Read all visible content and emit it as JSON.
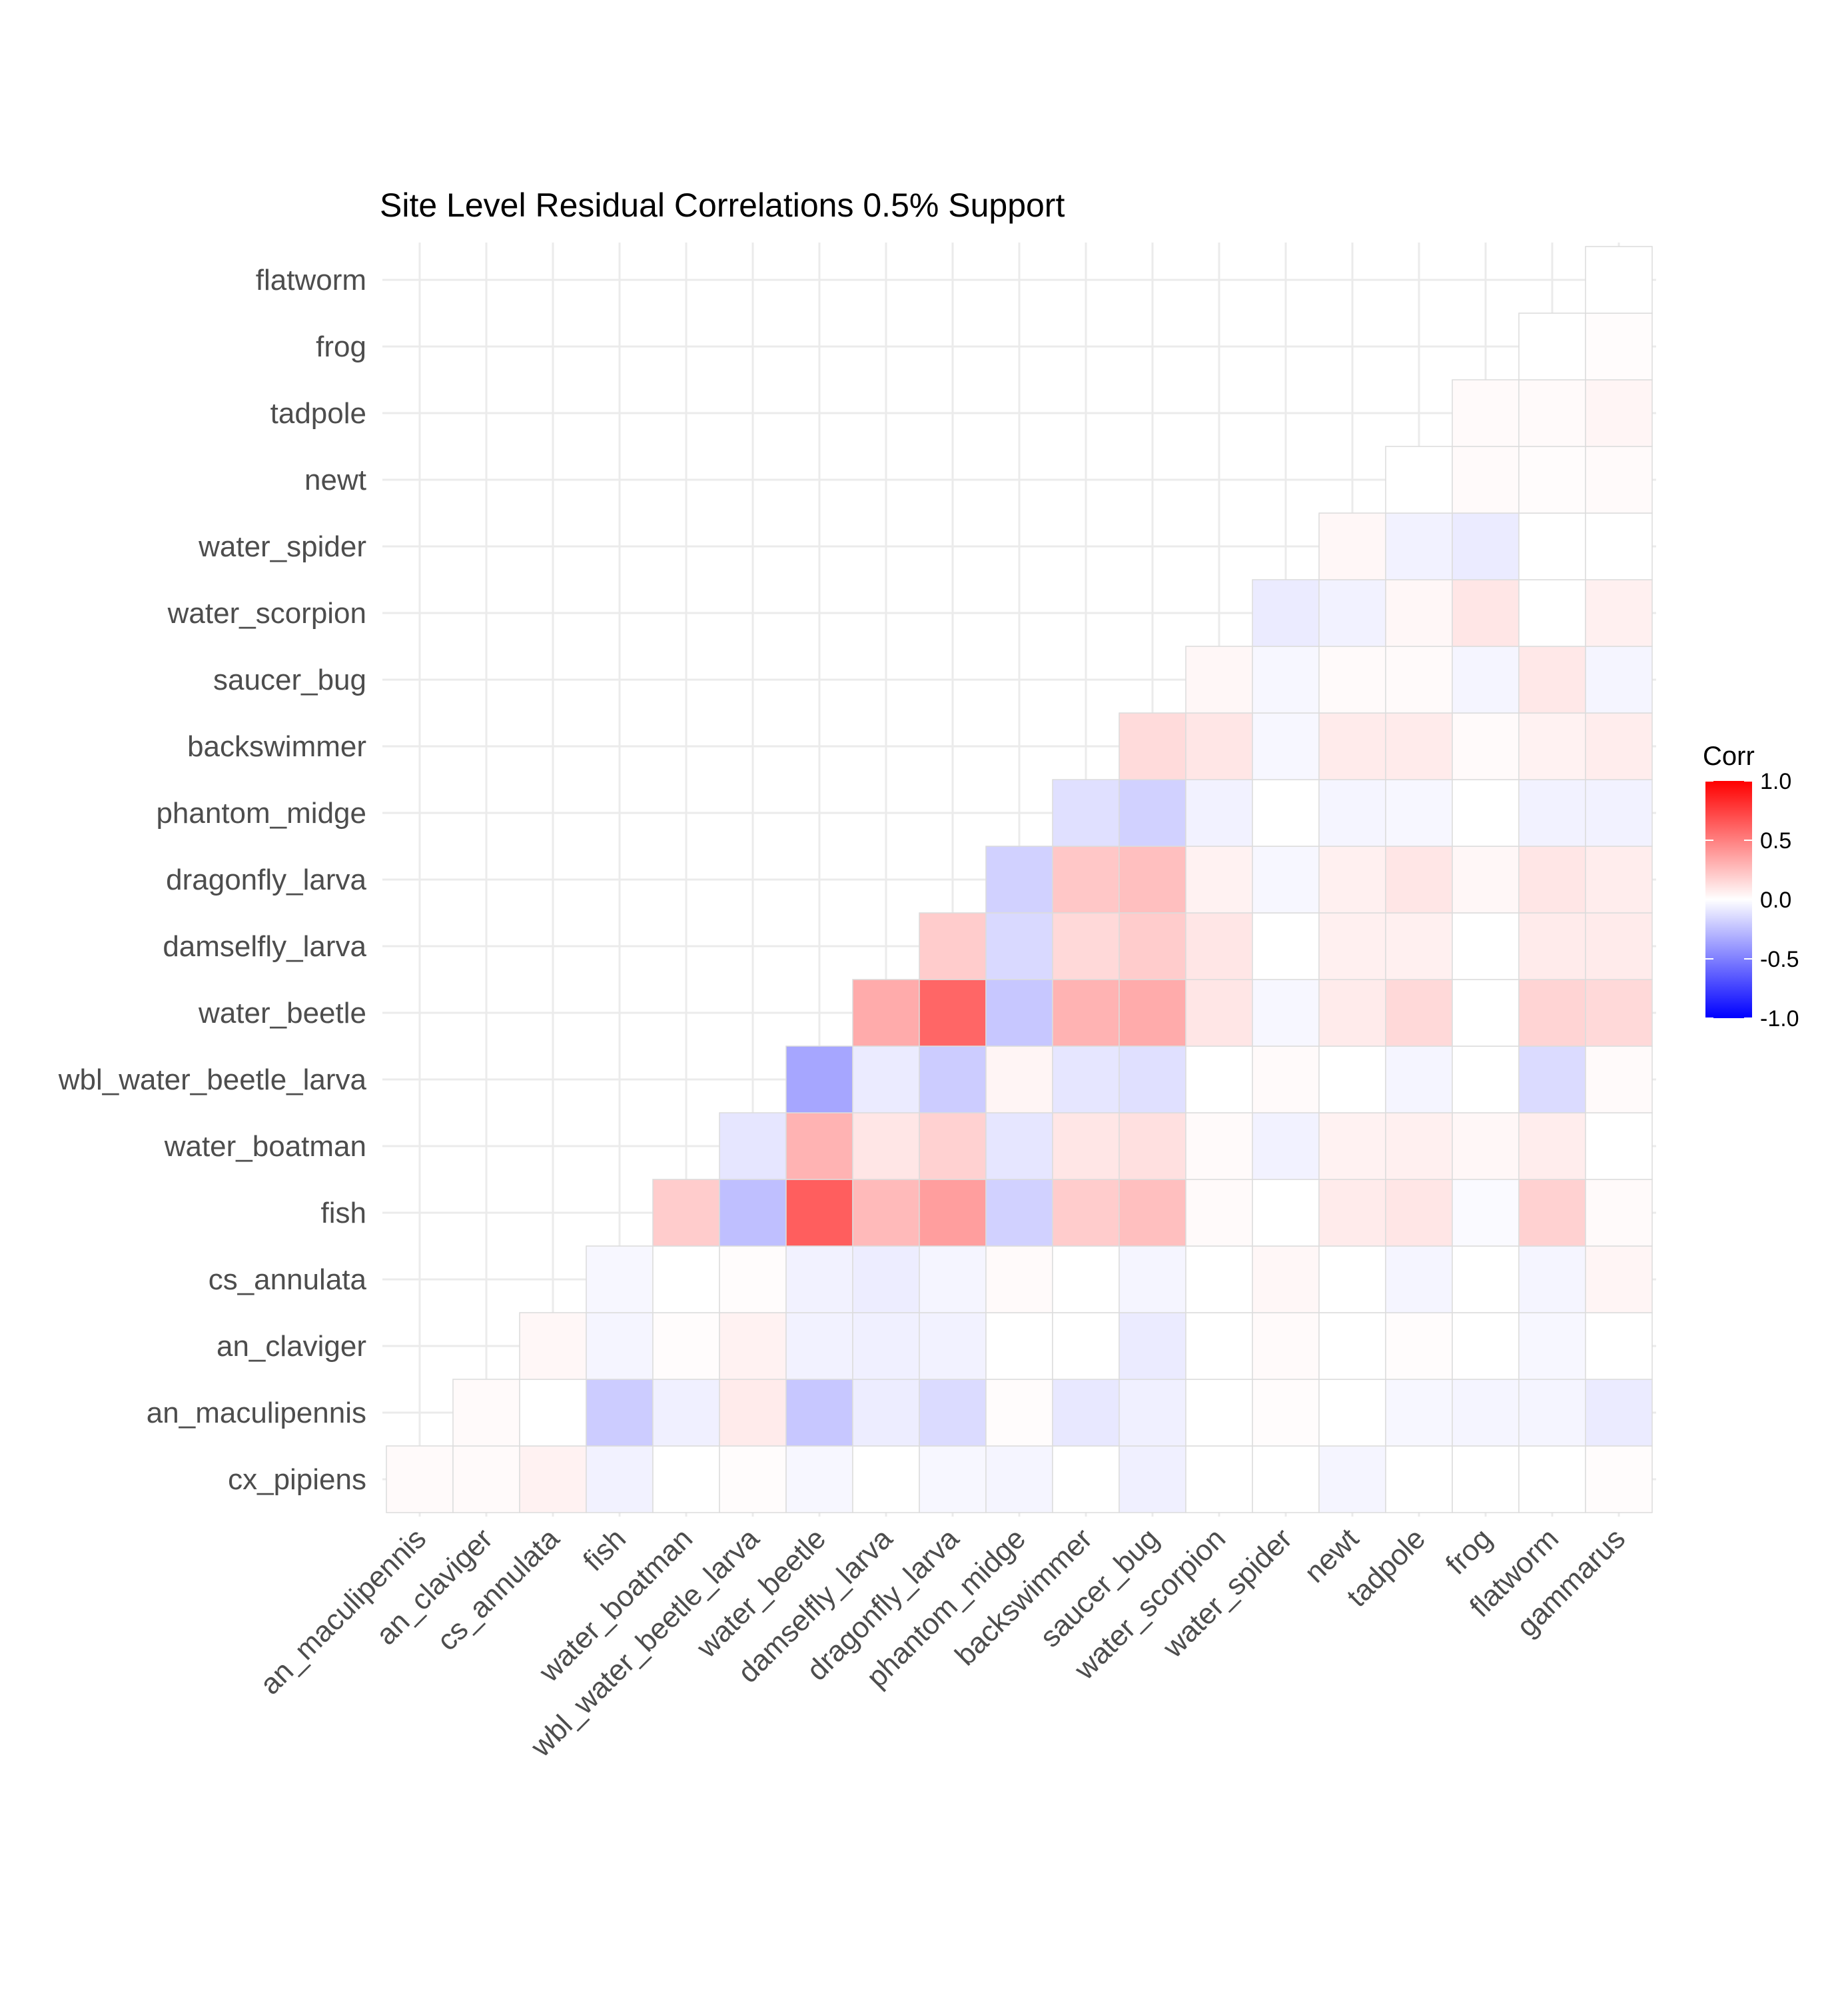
{
  "chart_data": {
    "type": "heatmap",
    "title": "Site Level Residual Correlations 0.5% Support",
    "xlabel": "",
    "ylabel": "",
    "x_categories": [
      "an_maculipennis",
      "an_claviger",
      "cs_annulata",
      "fish",
      "water_boatman",
      "wbl_water_beetle_larva",
      "water_beetle",
      "damselfly_larva",
      "dragonfly_larva",
      "phantom_midge",
      "backswimmer",
      "saucer_bug",
      "water_scorpion",
      "water_spider",
      "newt",
      "tadpole",
      "frog",
      "flatworm",
      "gammarus"
    ],
    "y_categories": [
      "cx_pipiens",
      "an_maculipennis",
      "an_claviger",
      "cs_annulata",
      "fish",
      "water_boatman",
      "wbl_water_beetle_larva",
      "water_beetle",
      "damselfly_larva",
      "dragonfly_larva",
      "phantom_midge",
      "backswimmer",
      "saucer_bug",
      "water_scorpion",
      "water_spider",
      "newt",
      "tadpole",
      "frog",
      "flatworm"
    ],
    "values": [
      [
        0.02,
        0.02,
        0.05,
        -0.05,
        0.0,
        0.01,
        -0.03,
        0.0,
        -0.03,
        -0.04,
        0.0,
        -0.06,
        0.0,
        0.0,
        -0.04,
        0.0,
        0.0,
        0.0,
        0.01
      ],
      [
        null,
        0.02,
        0.0,
        -0.2,
        -0.06,
        0.08,
        -0.22,
        -0.07,
        -0.14,
        0.01,
        -0.09,
        -0.06,
        0.0,
        0.01,
        0.0,
        -0.03,
        -0.04,
        -0.04,
        -0.08
      ],
      [
        null,
        null,
        0.03,
        -0.04,
        0.01,
        0.05,
        -0.05,
        -0.06,
        -0.05,
        0.0,
        0.0,
        -0.08,
        0.0,
        0.02,
        0.0,
        0.01,
        0.0,
        -0.03,
        0.0
      ],
      [
        null,
        null,
        null,
        -0.03,
        0.0,
        0.01,
        -0.05,
        -0.07,
        -0.04,
        0.02,
        0.0,
        -0.04,
        0.0,
        0.03,
        0.0,
        -0.04,
        0.0,
        -0.04,
        0.04
      ],
      [
        null,
        null,
        null,
        null,
        0.2,
        -0.25,
        0.63,
        0.27,
        0.38,
        -0.18,
        0.2,
        0.25,
        0.02,
        0.0,
        0.08,
        0.1,
        -0.02,
        0.18,
        0.02
      ],
      [
        null,
        null,
        null,
        null,
        null,
        -0.1,
        0.3,
        0.1,
        0.18,
        -0.1,
        0.1,
        0.12,
        0.02,
        -0.05,
        0.05,
        0.06,
        0.03,
        0.07,
        0.0
      ],
      [
        null,
        null,
        null,
        null,
        null,
        null,
        -0.35,
        -0.08,
        -0.2,
        0.04,
        -0.1,
        -0.12,
        0.0,
        0.02,
        0.0,
        -0.04,
        0.0,
        -0.14,
        0.02
      ],
      [
        null,
        null,
        null,
        null,
        null,
        null,
        null,
        0.33,
        0.6,
        -0.22,
        0.3,
        0.33,
        0.1,
        -0.03,
        0.08,
        0.15,
        0.0,
        0.17,
        0.15
      ],
      [
        null,
        null,
        null,
        null,
        null,
        null,
        null,
        null,
        0.2,
        -0.15,
        0.15,
        0.2,
        0.1,
        0.0,
        0.06,
        0.06,
        0.0,
        0.08,
        0.08
      ],
      [
        null,
        null,
        null,
        null,
        null,
        null,
        null,
        null,
        null,
        -0.18,
        0.22,
        0.25,
        0.05,
        -0.03,
        0.06,
        0.1,
        0.03,
        0.1,
        0.07
      ],
      [
        null,
        null,
        null,
        null,
        null,
        null,
        null,
        null,
        null,
        null,
        -0.12,
        -0.18,
        -0.05,
        0.0,
        -0.04,
        -0.03,
        0.0,
        -0.05,
        -0.05
      ],
      [
        null,
        null,
        null,
        null,
        null,
        null,
        null,
        null,
        null,
        null,
        null,
        0.14,
        0.1,
        -0.03,
        0.08,
        0.08,
        0.02,
        0.05,
        0.07
      ],
      [
        null,
        null,
        null,
        null,
        null,
        null,
        null,
        null,
        null,
        null,
        null,
        null,
        0.03,
        -0.03,
        0.02,
        0.02,
        -0.04,
        0.09,
        -0.04
      ],
      [
        null,
        null,
        null,
        null,
        null,
        null,
        null,
        null,
        null,
        null,
        null,
        null,
        null,
        -0.08,
        -0.05,
        0.03,
        0.1,
        0.0,
        0.06
      ],
      [
        null,
        null,
        null,
        null,
        null,
        null,
        null,
        null,
        null,
        null,
        null,
        null,
        null,
        null,
        0.03,
        -0.05,
        -0.08,
        0.0,
        0.0
      ],
      [
        null,
        null,
        null,
        null,
        null,
        null,
        null,
        null,
        null,
        null,
        null,
        null,
        null,
        null,
        null,
        0.0,
        0.02,
        0.01,
        0.02
      ],
      [
        null,
        null,
        null,
        null,
        null,
        null,
        null,
        null,
        null,
        null,
        null,
        null,
        null,
        null,
        null,
        null,
        0.02,
        0.02,
        0.04
      ],
      [
        null,
        null,
        null,
        null,
        null,
        null,
        null,
        null,
        null,
        null,
        null,
        null,
        null,
        null,
        null,
        null,
        null,
        0.0,
        0.01
      ],
      [
        null,
        null,
        null,
        null,
        null,
        null,
        null,
        null,
        null,
        null,
        null,
        null,
        null,
        null,
        null,
        null,
        null,
        null,
        0.0
      ]
    ],
    "color_scale": {
      "low": "#0000ff",
      "mid": "#ffffff",
      "high": "#ff0000",
      "limits": [
        -1.0,
        1.0
      ]
    },
    "legend": {
      "title": "Corr",
      "ticks": [
        "1.0",
        "0.5",
        "0.0",
        "-0.5",
        "-1.0"
      ],
      "placement": "right"
    },
    "grid": true
  }
}
